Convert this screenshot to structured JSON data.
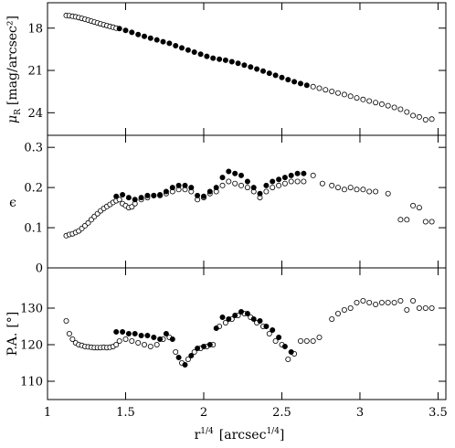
{
  "chart_data": [
    {
      "type": "scatter",
      "panel": "top",
      "ylabel_main": "μ",
      "ylabel_sub": "R",
      "ylabel_units": "[mag/arcsec²]",
      "ylim": [
        16.2,
        25.6
      ],
      "y_inverted": true,
      "yticks": [
        18,
        21,
        24
      ],
      "xlim": [
        1.0,
        3.55
      ],
      "series": [
        {
          "marker": "open",
          "points": [
            [
              1.12,
              17.1
            ],
            [
              1.14,
              17.12
            ],
            [
              1.16,
              17.16
            ],
            [
              1.18,
              17.2
            ],
            [
              1.2,
              17.25
            ],
            [
              1.22,
              17.31
            ],
            [
              1.24,
              17.37
            ],
            [
              1.26,
              17.43
            ],
            [
              1.28,
              17.5
            ],
            [
              1.3,
              17.57
            ],
            [
              1.32,
              17.63
            ],
            [
              1.34,
              17.7
            ],
            [
              1.36,
              17.76
            ],
            [
              1.38,
              17.82
            ],
            [
              1.4,
              17.88
            ],
            [
              1.42,
              17.94
            ],
            [
              1.44,
              18.0
            ],
            [
              2.7,
              22.15
            ],
            [
              2.74,
              22.26
            ],
            [
              2.78,
              22.37
            ],
            [
              2.82,
              22.49
            ],
            [
              2.86,
              22.6
            ],
            [
              2.9,
              22.71
            ],
            [
              2.94,
              22.83
            ],
            [
              2.98,
              22.95
            ],
            [
              3.02,
              23.06
            ],
            [
              3.06,
              23.17
            ],
            [
              3.1,
              23.28
            ],
            [
              3.14,
              23.39
            ],
            [
              3.18,
              23.5
            ],
            [
              3.22,
              23.62
            ],
            [
              3.26,
              23.75
            ],
            [
              3.3,
              23.95
            ],
            [
              3.34,
              24.2
            ],
            [
              3.38,
              24.3
            ],
            [
              3.42,
              24.5
            ],
            [
              3.46,
              24.45
            ]
          ]
        },
        {
          "marker": "filled",
          "points": [
            [
              1.46,
              18.03
            ],
            [
              1.5,
              18.16
            ],
            [
              1.54,
              18.3
            ],
            [
              1.58,
              18.45
            ],
            [
              1.62,
              18.58
            ],
            [
              1.66,
              18.71
            ],
            [
              1.7,
              18.83
            ],
            [
              1.74,
              18.96
            ],
            [
              1.78,
              19.08
            ],
            [
              1.82,
              19.25
            ],
            [
              1.86,
              19.4
            ],
            [
              1.9,
              19.55
            ],
            [
              1.94,
              19.7
            ],
            [
              1.98,
              19.85
            ],
            [
              2.02,
              20.0
            ],
            [
              2.06,
              20.13
            ],
            [
              2.1,
              20.2
            ],
            [
              2.14,
              20.28
            ],
            [
              2.18,
              20.38
            ],
            [
              2.22,
              20.5
            ],
            [
              2.26,
              20.62
            ],
            [
              2.3,
              20.75
            ],
            [
              2.34,
              20.9
            ],
            [
              2.38,
              21.05
            ],
            [
              2.42,
              21.2
            ],
            [
              2.46,
              21.35
            ],
            [
              2.5,
              21.5
            ],
            [
              2.54,
              21.65
            ],
            [
              2.58,
              21.8
            ],
            [
              2.62,
              21.93
            ],
            [
              2.66,
              22.05
            ]
          ]
        }
      ]
    },
    {
      "type": "scatter",
      "panel": "middle",
      "ylabel": "ϵ",
      "ylim": [
        0.0,
        0.33
      ],
      "yticks": [
        0,
        0.1,
        0.2,
        0.3
      ],
      "xlim": [
        1.0,
        3.55
      ],
      "series": [
        {
          "marker": "open",
          "points": [
            [
              1.12,
              0.08
            ],
            [
              1.14,
              0.083
            ],
            [
              1.16,
              0.085
            ],
            [
              1.18,
              0.088
            ],
            [
              1.2,
              0.092
            ],
            [
              1.22,
              0.098
            ],
            [
              1.24,
              0.105
            ],
            [
              1.26,
              0.112
            ],
            [
              1.28,
              0.12
            ],
            [
              1.3,
              0.128
            ],
            [
              1.32,
              0.135
            ],
            [
              1.34,
              0.142
            ],
            [
              1.36,
              0.148
            ],
            [
              1.38,
              0.153
            ],
            [
              1.4,
              0.158
            ],
            [
              1.42,
              0.163
            ],
            [
              1.44,
              0.167
            ],
            [
              1.46,
              0.17
            ],
            [
              1.48,
              0.16
            ],
            [
              1.5,
              0.155
            ],
            [
              1.52,
              0.15
            ],
            [
              1.54,
              0.152
            ],
            [
              1.56,
              0.16
            ],
            [
              1.6,
              0.17
            ],
            [
              1.64,
              0.175
            ],
            [
              1.68,
              0.18
            ],
            [
              1.72,
              0.18
            ],
            [
              1.76,
              0.185
            ],
            [
              1.8,
              0.19
            ],
            [
              1.84,
              0.195
            ],
            [
              1.88,
              0.195
            ],
            [
              1.92,
              0.19
            ],
            [
              1.96,
              0.17
            ],
            [
              2.0,
              0.175
            ],
            [
              2.04,
              0.185
            ],
            [
              2.08,
              0.19
            ],
            [
              2.12,
              0.205
            ],
            [
              2.16,
              0.215
            ],
            [
              2.2,
              0.21
            ],
            [
              2.24,
              0.205
            ],
            [
              2.28,
              0.2
            ],
            [
              2.32,
              0.19
            ],
            [
              2.36,
              0.175
            ],
            [
              2.4,
              0.19
            ],
            [
              2.44,
              0.2
            ],
            [
              2.48,
              0.205
            ],
            [
              2.52,
              0.21
            ],
            [
              2.56,
              0.215
            ],
            [
              2.6,
              0.215
            ],
            [
              2.64,
              0.215
            ],
            [
              2.7,
              0.23
            ],
            [
              2.76,
              0.21
            ],
            [
              2.82,
              0.205
            ],
            [
              2.86,
              0.2
            ],
            [
              2.9,
              0.195
            ],
            [
              2.94,
              0.2
            ],
            [
              2.98,
              0.195
            ],
            [
              3.02,
              0.195
            ],
            [
              3.06,
              0.19
            ],
            [
              3.1,
              0.19
            ],
            [
              3.18,
              0.185
            ],
            [
              3.26,
              0.12
            ],
            [
              3.3,
              0.12
            ],
            [
              3.34,
              0.155
            ],
            [
              3.38,
              0.15
            ],
            [
              3.42,
              0.115
            ],
            [
              3.46,
              0.115
            ]
          ]
        },
        {
          "marker": "filled",
          "points": [
            [
              1.44,
              0.178
            ],
            [
              1.48,
              0.182
            ],
            [
              1.52,
              0.175
            ],
            [
              1.56,
              0.17
            ],
            [
              1.6,
              0.175
            ],
            [
              1.64,
              0.18
            ],
            [
              1.68,
              0.18
            ],
            [
              1.72,
              0.182
            ],
            [
              1.76,
              0.19
            ],
            [
              1.8,
              0.2
            ],
            [
              1.84,
              0.205
            ],
            [
              1.88,
              0.205
            ],
            [
              1.92,
              0.2
            ],
            [
              1.96,
              0.18
            ],
            [
              2.0,
              0.178
            ],
            [
              2.04,
              0.19
            ],
            [
              2.08,
              0.2
            ],
            [
              2.12,
              0.225
            ],
            [
              2.16,
              0.24
            ],
            [
              2.2,
              0.235
            ],
            [
              2.24,
              0.23
            ],
            [
              2.28,
              0.215
            ],
            [
              2.32,
              0.2
            ],
            [
              2.36,
              0.185
            ],
            [
              2.4,
              0.205
            ],
            [
              2.44,
              0.215
            ],
            [
              2.48,
              0.22
            ],
            [
              2.52,
              0.225
            ],
            [
              2.56,
              0.23
            ],
            [
              2.6,
              0.235
            ],
            [
              2.64,
              0.235
            ]
          ]
        }
      ]
    },
    {
      "type": "scatter",
      "panel": "bottom",
      "ylabel": "P.A.",
      "ylabel_units": "[°]",
      "ylim": [
        105,
        141
      ],
      "yticks": [
        110,
        120,
        130
      ],
      "xlim": [
        1.0,
        3.55
      ],
      "xticks": [
        1,
        1.5,
        2,
        2.5,
        3,
        3.5
      ],
      "xlabel": "r",
      "xlabel_sup": "1/4",
      "xlabel_units": "[arcsec",
      "xlabel_units_sup": "1/4",
      "xlabel_units_close": "]",
      "series": [
        {
          "marker": "open",
          "points": [
            [
              1.12,
              126.5
            ],
            [
              1.14,
              123.0
            ],
            [
              1.16,
              121.5
            ],
            [
              1.18,
              120.5
            ],
            [
              1.2,
              120.0
            ],
            [
              1.22,
              119.8
            ],
            [
              1.24,
              119.5
            ],
            [
              1.26,
              119.4
            ],
            [
              1.28,
              119.3
            ],
            [
              1.3,
              119.2
            ],
            [
              1.32,
              119.2
            ],
            [
              1.34,
              119.2
            ],
            [
              1.36,
              119.3
            ],
            [
              1.38,
              119.2
            ],
            [
              1.4,
              119.3
            ],
            [
              1.42,
              119.5
            ],
            [
              1.44,
              120.0
            ],
            [
              1.46,
              121.0
            ],
            [
              1.5,
              121.5
            ],
            [
              1.54,
              121.0
            ],
            [
              1.58,
              120.5
            ],
            [
              1.62,
              120.0
            ],
            [
              1.66,
              119.5
            ],
            [
              1.7,
              120.0
            ],
            [
              1.74,
              121.5
            ],
            [
              1.78,
              122.0
            ],
            [
              1.82,
              118.0
            ],
            [
              1.86,
              115.0
            ],
            [
              1.9,
              116.0
            ],
            [
              1.94,
              118.0
            ],
            [
              1.98,
              119.0
            ],
            [
              2.02,
              119.5
            ],
            [
              2.06,
              120.0
            ],
            [
              2.1,
              125.0
            ],
            [
              2.14,
              126.0
            ],
            [
              2.18,
              127.0
            ],
            [
              2.22,
              128.0
            ],
            [
              2.26,
              128.5
            ],
            [
              2.3,
              127.5
            ],
            [
              2.34,
              126.0
            ],
            [
              2.38,
              125.0
            ],
            [
              2.42,
              123.0
            ],
            [
              2.46,
              121.0
            ],
            [
              2.5,
              120.0
            ],
            [
              2.54,
              116.0
            ],
            [
              2.58,
              117.5
            ],
            [
              2.62,
              121.0
            ],
            [
              2.66,
              121.0
            ],
            [
              2.7,
              121.0
            ],
            [
              2.74,
              122.0
            ],
            [
              2.82,
              127.0
            ],
            [
              2.86,
              128.5
            ],
            [
              2.9,
              129.5
            ],
            [
              2.94,
              130.0
            ],
            [
              2.98,
              131.5
            ],
            [
              3.02,
              132.0
            ],
            [
              3.06,
              131.5
            ],
            [
              3.1,
              131.0
            ],
            [
              3.14,
              131.5
            ],
            [
              3.18,
              131.5
            ],
            [
              3.22,
              131.5
            ],
            [
              3.26,
              132.0
            ],
            [
              3.3,
              129.5
            ],
            [
              3.34,
              132.0
            ],
            [
              3.38,
              130.0
            ],
            [
              3.42,
              130.0
            ],
            [
              3.46,
              130.0
            ]
          ]
        },
        {
          "marker": "filled",
          "points": [
            [
              1.44,
              123.5
            ],
            [
              1.48,
              123.5
            ],
            [
              1.52,
              123.0
            ],
            [
              1.56,
              123.0
            ],
            [
              1.6,
              122.5
            ],
            [
              1.64,
              122.5
            ],
            [
              1.68,
              122.0
            ],
            [
              1.72,
              121.5
            ],
            [
              1.76,
              123.0
            ],
            [
              1.8,
              121.5
            ],
            [
              1.84,
              116.5
            ],
            [
              1.88,
              114.5
            ],
            [
              1.92,
              117.0
            ],
            [
              1.96,
              119.0
            ],
            [
              2.0,
              119.5
            ],
            [
              2.04,
              120.0
            ],
            [
              2.08,
              124.5
            ],
            [
              2.12,
              127.5
            ],
            [
              2.16,
              127.0
            ],
            [
              2.2,
              128.0
            ],
            [
              2.24,
              129.0
            ],
            [
              2.28,
              128.5
            ],
            [
              2.32,
              127.0
            ],
            [
              2.36,
              126.5
            ],
            [
              2.4,
              125.0
            ],
            [
              2.44,
              124.0
            ],
            [
              2.48,
              122.0
            ],
            [
              2.52,
              119.5
            ],
            [
              2.56,
              118.0
            ]
          ]
        }
      ]
    }
  ]
}
